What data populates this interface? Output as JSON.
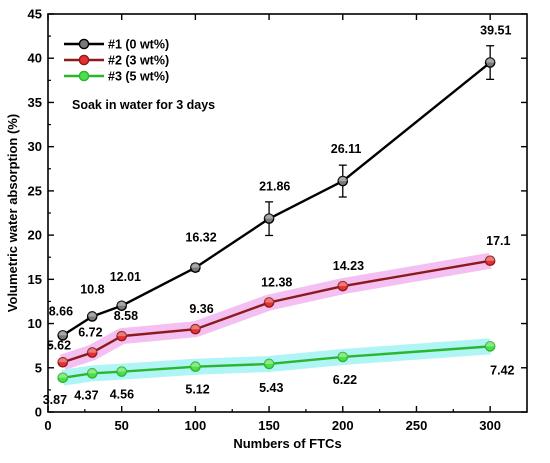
{
  "chart_data": {
    "type": "line",
    "xlabel": "Numbers of FTCs",
    "ylabel": "Volumetric water absorption (%)",
    "xlim": [
      0,
      325
    ],
    "ylim": [
      0,
      45
    ],
    "xticks": [
      0,
      50,
      100,
      150,
      200,
      250,
      300
    ],
    "yticks": [
      0,
      5,
      10,
      15,
      20,
      25,
      30,
      35,
      40,
      45
    ],
    "grid": false,
    "legend_position": "top-left",
    "annotation": "Soak in water for 3 days",
    "x": [
      10,
      30,
      50,
      100,
      150,
      200,
      300
    ],
    "series": [
      {
        "name": "#1 (0 wt%)",
        "color": "#000000",
        "marker_fill": "#7a7a7a",
        "values": [
          8.66,
          10.8,
          12.01,
          16.32,
          21.86,
          26.11,
          39.51
        ],
        "labels": [
          "8.66",
          "10.8",
          "12.01",
          "16.32",
          "21.86",
          "26.11",
          "39.51"
        ],
        "error": [
          0,
          0,
          0,
          0.4,
          1.9,
          1.8,
          1.9
        ]
      },
      {
        "name": "#2 (3 wt%)",
        "color": "#8b1a1a",
        "marker_fill": "#e83030",
        "highlight": "#f3b8f0",
        "values": [
          5.62,
          6.72,
          8.58,
          9.36,
          12.38,
          14.23,
          17.1
        ],
        "labels": [
          "5.62",
          "6.72",
          "8.58",
          "9.36",
          "12.38",
          "14.23",
          "17.1"
        ],
        "error": [
          0,
          0,
          0,
          0,
          0,
          0,
          0
        ]
      },
      {
        "name": "#3 (5 wt%)",
        "color": "#2db52d",
        "marker_fill": "#4be04b",
        "highlight": "#a6f4f4",
        "values": [
          3.87,
          4.37,
          4.56,
          5.12,
          5.43,
          6.22,
          7.42
        ],
        "labels": [
          "3.87",
          "4.37",
          "4.56",
          "5.12",
          "5.43",
          "6.22",
          "7.42"
        ],
        "error": [
          0,
          0,
          0,
          0,
          0,
          0,
          0
        ]
      }
    ]
  }
}
